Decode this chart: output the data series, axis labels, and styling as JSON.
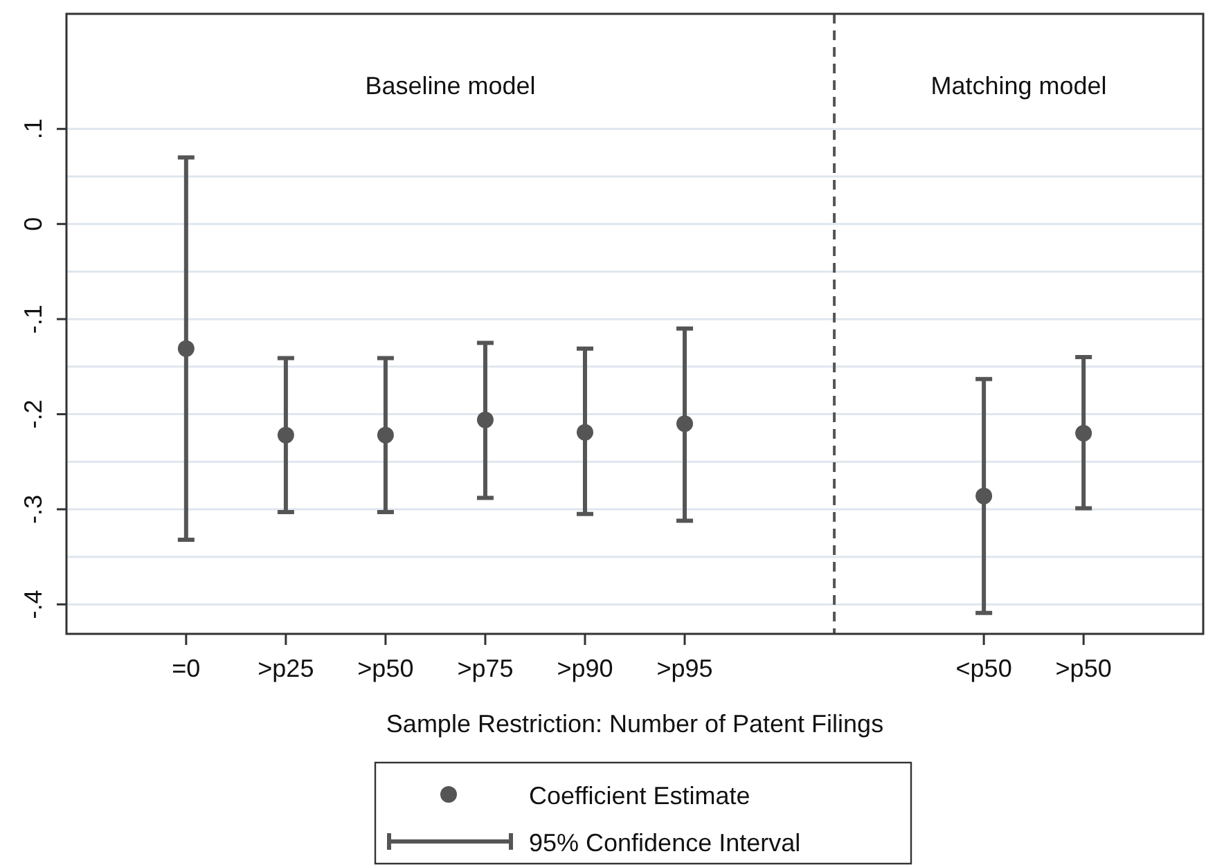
{
  "chart_data": {
    "type": "scatter",
    "xlabel": "Sample Restriction: Number of Patent Filings",
    "categories": [
      null,
      "=0",
      ">p25",
      ">p50",
      ">p75",
      ">p90",
      ">p95",
      null,
      null,
      "<p50",
      ">p50",
      null
    ],
    "ylim": [
      -0.431,
      0.221
    ],
    "yticks": [
      {
        "value": 0.1,
        "label": ".1"
      },
      {
        "value": 0.05,
        "label": null
      },
      {
        "value": 0,
        "label": "0"
      },
      {
        "value": -0.05,
        "label": null
      },
      {
        "value": -0.1,
        "label": "-.1"
      },
      {
        "value": -0.15,
        "label": null
      },
      {
        "value": -0.2,
        "label": "-.2"
      },
      {
        "value": -0.25,
        "label": null
      },
      {
        "value": -0.3,
        "label": "-.3"
      },
      {
        "value": -0.35,
        "label": null
      },
      {
        "value": -0.4,
        "label": "-.4"
      }
    ],
    "grid": "y",
    "series": [
      {
        "name": "Coefficient Estimate",
        "color": "#555555",
        "values": [
          null,
          -0.131,
          -0.222,
          -0.222,
          -0.206,
          -0.219,
          -0.21,
          null,
          null,
          -0.286,
          -0.22,
          null
        ],
        "errors": [
          null,
          [
            -0.332,
            0.07
          ],
          [
            -0.303,
            -0.141
          ],
          [
            -0.303,
            -0.141
          ],
          [
            -0.288,
            -0.125
          ],
          [
            -0.305,
            -0.131
          ],
          [
            -0.312,
            -0.11
          ],
          null,
          null,
          [
            -0.409,
            -0.163
          ],
          [
            -0.299,
            -0.14
          ],
          null
        ]
      }
    ],
    "marker": "circle",
    "annotations": [
      "Baseline model",
      "Matching model",
      "95% Confidence Interval"
    ],
    "legend": "bottom"
  }
}
